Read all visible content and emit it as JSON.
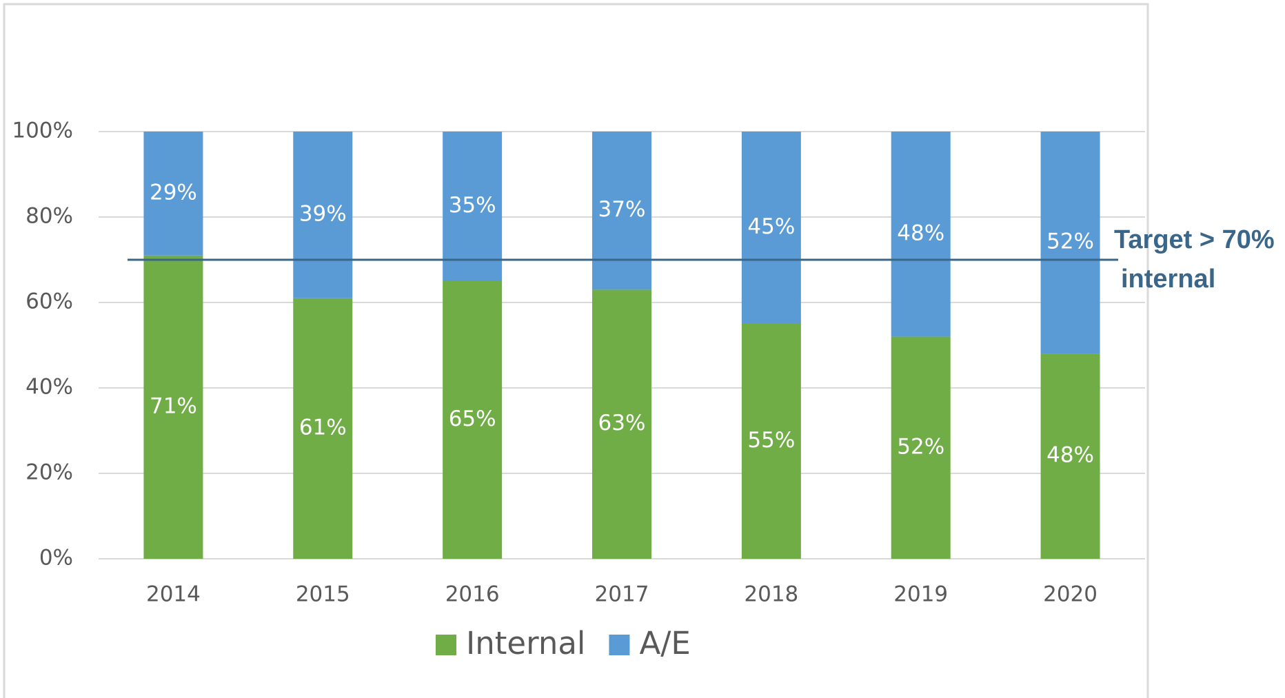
{
  "chart_data": {
    "type": "stacked_bar",
    "categories": [
      "2014",
      "2015",
      "2016",
      "2017",
      "2018",
      "2019",
      "2020"
    ],
    "series": [
      {
        "name": "Internal",
        "color": "#70ad47",
        "values": [
          71,
          61,
          65,
          63,
          55,
          52,
          48
        ],
        "value_labels": [
          "71%",
          "61%",
          "65%",
          "63%",
          "55%",
          "52%",
          "48%"
        ]
      },
      {
        "name": "A/E",
        "color": "#5b9bd5",
        "values": [
          29,
          39,
          35,
          37,
          45,
          48,
          52
        ],
        "value_labels": [
          "29%",
          "39%",
          "35%",
          "37%",
          "45%",
          "48%",
          "52%"
        ]
      }
    ],
    "ylim": [
      0,
      100
    ],
    "yticks": [
      {
        "value": 0,
        "label": "0%"
      },
      {
        "value": 20,
        "label": "20%"
      },
      {
        "value": 40,
        "label": "40%"
      },
      {
        "value": 60,
        "label": "60%"
      },
      {
        "value": 80,
        "label": "80%"
      },
      {
        "value": 100,
        "label": "100%"
      }
    ],
    "grid": true,
    "legend": "bottom",
    "target_line": {
      "value": 70,
      "color": "#3a6689",
      "label_lines": [
        "Target > 70%",
        "internal"
      ]
    }
  }
}
